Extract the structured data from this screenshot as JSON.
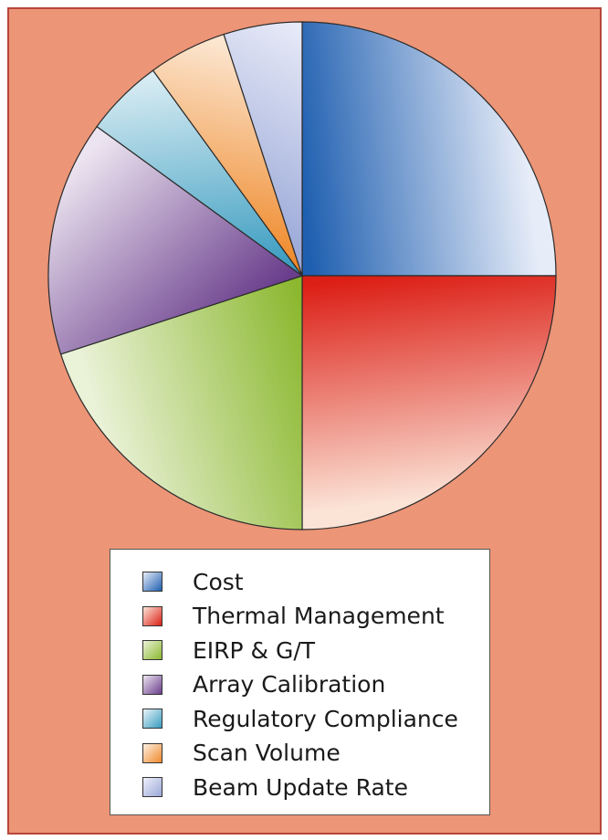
{
  "chart_data": {
    "type": "pie",
    "start_angle_deg": 90,
    "direction": "clockwise",
    "slices": [
      {
        "label": "Cost",
        "value": 25,
        "color": "#1f5fb0",
        "light": "#e6ecf8"
      },
      {
        "label": "Thermal Management",
        "value": 25,
        "color": "#dc1f16",
        "light": "#fbe3d6"
      },
      {
        "label": "EIRP & G/T",
        "value": 20,
        "color": "#8cb830",
        "light": "#eaf2d8"
      },
      {
        "label": "Array Calibration",
        "value": 15,
        "color": "#6a3e8c",
        "light": "#ece4f0"
      },
      {
        "label": "Regulatory Compliance",
        "value": 5,
        "color": "#3a9cc0",
        "light": "#e8f4f8"
      },
      {
        "label": "Scan Volume",
        "value": 5,
        "color": "#ef8a2c",
        "light": "#fdf0e2"
      },
      {
        "label": "Beam Update Rate",
        "value": 5,
        "color": "#9aa8d8",
        "light": "#eef0fa"
      }
    ],
    "legend_position": "bottom"
  }
}
